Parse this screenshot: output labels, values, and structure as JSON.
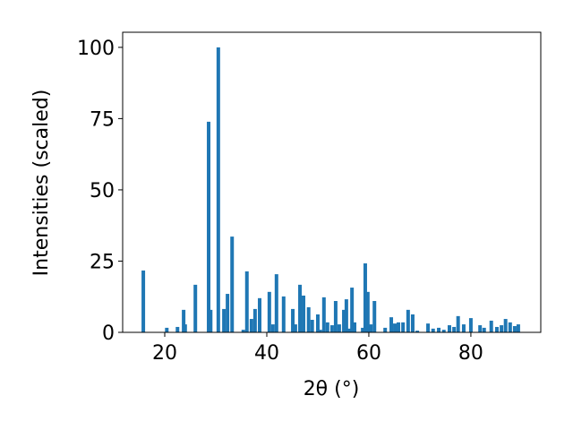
{
  "chart_data": {
    "type": "bar",
    "xlabel": "2θ (°)",
    "ylabel": "Intensities (scaled)",
    "x": [
      15.8,
      20.4,
      22.5,
      23.7,
      24.0,
      26.0,
      28.6,
      29.0,
      30.5,
      31.6,
      32.3,
      33.2,
      35.4,
      36.1,
      37.0,
      37.7,
      38.6,
      40.5,
      41.2,
      41.9,
      43.3,
      45.1,
      45.6,
      46.5,
      47.2,
      48.2,
      48.9,
      50.0,
      50.5,
      51.2,
      51.9,
      52.8,
      53.5,
      54.2,
      55.1,
      55.6,
      56.1,
      56.7,
      57.2,
      58.8,
      59.3,
      59.8,
      60.4,
      61.1,
      63.2,
      64.4,
      65.1,
      65.8,
      66.7,
      67.7,
      68.6,
      69.5,
      71.6,
      72.6,
      73.7,
      74.7,
      75.8,
      76.7,
      77.5,
      78.6,
      80.0,
      81.8,
      82.6,
      84.0,
      85.1,
      86.0,
      86.8,
      87.7,
      88.6,
      89.3
    ],
    "values": [
      21.7,
      1.6,
      1.9,
      7.9,
      2.8,
      16.7,
      73.9,
      7.9,
      100,
      8.2,
      13.5,
      33.6,
      0.9,
      21.4,
      4.7,
      8.2,
      12.0,
      14.2,
      2.8,
      20.4,
      12.6,
      8.2,
      2.8,
      16.7,
      12.9,
      8.8,
      4.4,
      6.3,
      0.9,
      12.3,
      3.5,
      2.5,
      11.0,
      2.8,
      7.9,
      11.6,
      1.3,
      15.7,
      3.5,
      1.6,
      24.2,
      14.2,
      2.8,
      11.0,
      1.6,
      5.3,
      3.1,
      3.5,
      3.5,
      7.9,
      6.3,
      0.6,
      3.1,
      1.3,
      1.6,
      0.9,
      2.5,
      1.9,
      5.7,
      2.8,
      5.0,
      2.5,
      1.6,
      4.1,
      1.9,
      2.5,
      4.7,
      3.5,
      2.2,
      2.8
    ],
    "color": "#1f77b4",
    "xlim": [
      11.75,
      93.7
    ],
    "xticks": [
      20,
      40,
      60,
      80
    ],
    "ylim": [
      0,
      105.3
    ],
    "yticks": [
      0,
      25,
      50,
      75,
      100
    ]
  }
}
